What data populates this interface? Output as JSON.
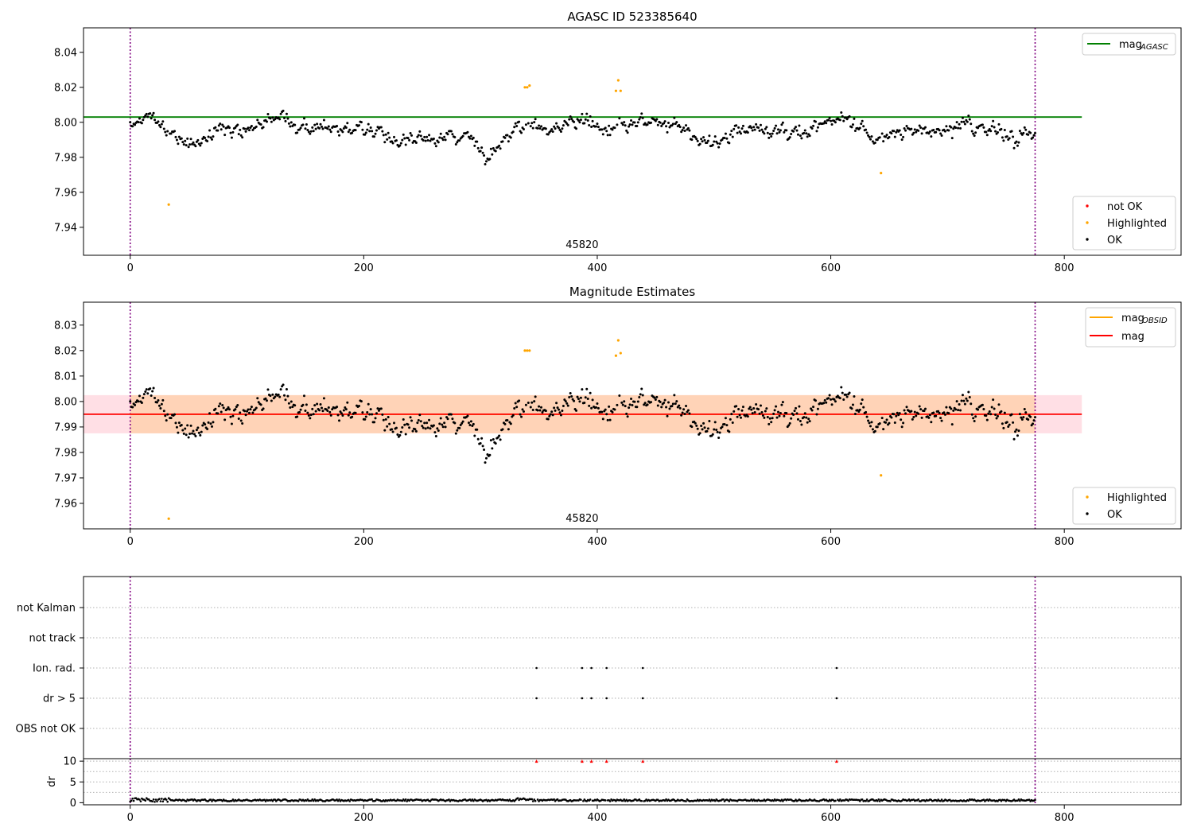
{
  "chart_data": [
    {
      "type": "scatter",
      "title": "AGASC ID 523385640",
      "xlim": [
        -40,
        900
      ],
      "ylim": [
        7.924,
        8.054
      ],
      "xticks": [
        0,
        200,
        400,
        600,
        800
      ],
      "yticks": [
        7.94,
        7.96,
        7.98,
        8.0,
        8.02,
        8.04
      ],
      "tick_decimals": 2,
      "grid": false,
      "annotation": "45820",
      "annotation_x": 387,
      "vlines": [
        0,
        775
      ],
      "mag_agasc": 8.003,
      "hline_x_end": 815,
      "legend_lines": [
        {
          "label": "mag",
          "sub": "AGASC",
          "color": "#008000"
        }
      ],
      "legend_points": [
        {
          "label": "not OK",
          "color": "#ff0000"
        },
        {
          "label": "Highlighted",
          "color": "#ffa500"
        },
        {
          "label": "OK",
          "color": "#000000"
        }
      ],
      "highlighted": [
        [
          33,
          7.953
        ],
        [
          338,
          8.02
        ],
        [
          340,
          8.02
        ],
        [
          342,
          8.021
        ],
        [
          416,
          8.018
        ],
        [
          418,
          8.024
        ],
        [
          420,
          8.018
        ],
        [
          643,
          7.971
        ]
      ],
      "ok_points_note": "775 OK samples (black) oscillating around 7.99-8.00 with range ~7.973-8.016"
    },
    {
      "type": "scatter",
      "title": "Magnitude Estimates",
      "xlim": [
        -40,
        900
      ],
      "ylim": [
        7.95,
        8.039
      ],
      "xticks": [
        0,
        200,
        400,
        600,
        800
      ],
      "yticks": [
        7.96,
        7.97,
        7.98,
        7.99,
        8.0,
        8.01,
        8.02,
        8.03
      ],
      "tick_decimals": 2,
      "grid": false,
      "annotation": "45820",
      "annotation_x": 387,
      "vlines": [
        0,
        775
      ],
      "mag": 7.995,
      "mag_band": [
        7.9875,
        8.0025
      ],
      "mag_obsid": 7.995,
      "obsid_band_x": [
        0,
        775
      ],
      "hline_x_end": 815,
      "legend_lines": [
        {
          "label": "mag",
          "sub": "OBSID",
          "color": "#ffa500"
        },
        {
          "label": "mag",
          "sub": "",
          "color": "#ff0000"
        }
      ],
      "legend_points": [
        {
          "label": "Highlighted",
          "color": "#ffa500"
        },
        {
          "label": "OK",
          "color": "#000000"
        }
      ],
      "highlighted": [
        [
          33,
          7.954
        ],
        [
          338,
          8.02
        ],
        [
          340,
          8.02
        ],
        [
          342,
          8.02
        ],
        [
          416,
          8.018
        ],
        [
          418,
          8.024
        ],
        [
          420,
          8.019
        ],
        [
          643,
          7.971
        ]
      ]
    },
    {
      "type": "scatter",
      "title": "",
      "xlim": [
        -40,
        900
      ],
      "categories": [
        "not Kalman",
        "not track",
        "Ion. rad.",
        "dr > 5",
        "OBS not OK"
      ],
      "flag_x": [
        348,
        387,
        395,
        408,
        439,
        605
      ],
      "flag_rows": [
        "Ion. rad.",
        "dr > 5"
      ],
      "vlines": [
        0,
        775
      ],
      "grid": "horizontal-dotted"
    },
    {
      "type": "scatter",
      "title": "",
      "ylabel": "dr",
      "xlim": [
        -40,
        900
      ],
      "ylim": [
        -0.5,
        10.6
      ],
      "xticks": [
        0,
        200,
        400,
        600,
        800
      ],
      "yticks": [
        0,
        5,
        10
      ],
      "clipped_value": 10,
      "clipped_x": [
        348,
        387,
        395,
        408,
        439,
        605
      ],
      "vlines": [
        0,
        775
      ],
      "grid": "horizontal-dotted"
    }
  ]
}
